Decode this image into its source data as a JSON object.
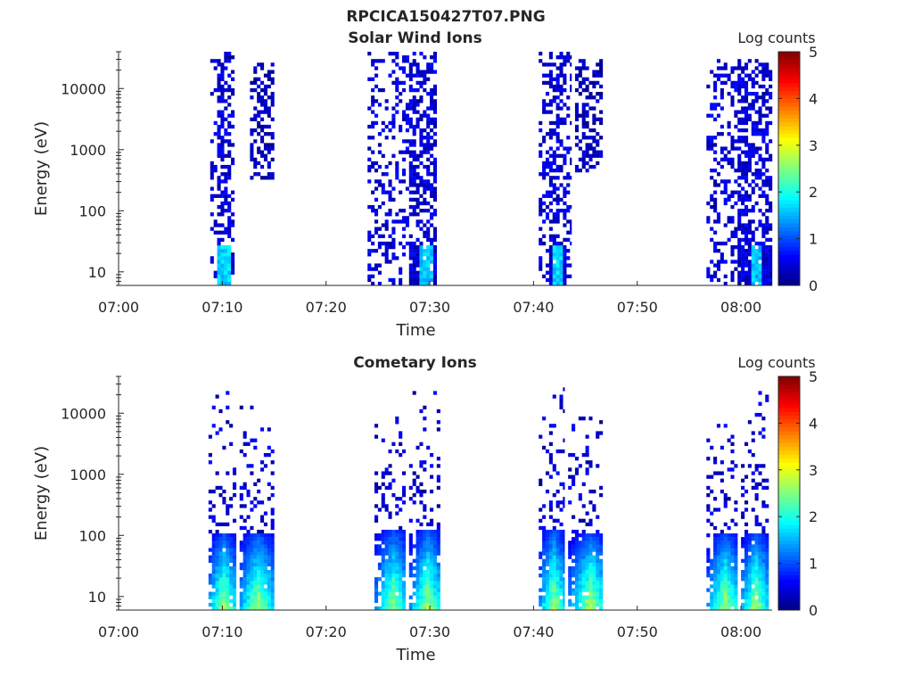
{
  "figure_title": "RPCICA150427T07.PNG",
  "chart_data": [
    {
      "type": "heatmap",
      "title": "Solar Wind Ions",
      "xlabel": "Time",
      "ylabel": "Energy (eV)",
      "x_ticks": [
        "07:00",
        "07:10",
        "07:20",
        "07:30",
        "07:40",
        "07:50",
        "08:00"
      ],
      "x_range": [
        "07:00",
        "08:03"
      ],
      "y_scale": "log",
      "y_ticks": [
        "10",
        "100",
        "1000",
        "10000"
      ],
      "y_range": [
        6,
        40000
      ],
      "colorbar": {
        "label": "Log counts",
        "ticks": [
          "0",
          "1",
          "2",
          "3",
          "4",
          "5"
        ],
        "range": [
          0,
          5
        ],
        "colormap": "jet"
      },
      "bursts": [
        {
          "start": "07:08:50",
          "end": "07:11:10",
          "peak": "07:10:00",
          "e_low": 6,
          "e_high": 40000,
          "peak_log_counts": 1.9,
          "low_energy_core": true
        },
        {
          "start": "07:12:40",
          "end": "07:15:00",
          "peak": "07:13:40",
          "e_low": 300,
          "e_high": 25000,
          "peak_log_counts": 0.5,
          "low_energy_core": false
        },
        {
          "start": "07:24:00",
          "end": "07:30:40",
          "peak": "07:29:30",
          "e_low": 6,
          "e_high": 40000,
          "peak_log_counts": 1.8,
          "low_energy_core": true
        },
        {
          "start": "07:40:30",
          "end": "07:43:40",
          "peak": "07:42:10",
          "e_low": 6,
          "e_high": 35000,
          "peak_log_counts": 1.9,
          "low_energy_core": true
        },
        {
          "start": "07:44:00",
          "end": "07:46:40",
          "peak": "07:45:20",
          "e_low": 400,
          "e_high": 30000,
          "peak_log_counts": 0.6,
          "low_energy_core": false
        },
        {
          "start": "07:56:40",
          "end": "08:03:00",
          "peak": "08:01:20",
          "e_low": 6,
          "e_high": 30000,
          "peak_log_counts": 1.8,
          "low_energy_core": true
        }
      ]
    },
    {
      "type": "heatmap",
      "title": "Cometary Ions",
      "xlabel": "Time",
      "ylabel": "Energy (eV)",
      "x_ticks": [
        "07:00",
        "07:10",
        "07:20",
        "07:30",
        "07:40",
        "07:50",
        "08:00"
      ],
      "x_range": [
        "07:00",
        "08:03"
      ],
      "y_scale": "log",
      "y_ticks": [
        "10",
        "100",
        "1000",
        "10000"
      ],
      "y_range": [
        6,
        40000
      ],
      "colorbar": {
        "label": "Log counts",
        "ticks": [
          "0",
          "1",
          "2",
          "3",
          "4",
          "5"
        ],
        "range": [
          0,
          5
        ],
        "colormap": "jet"
      },
      "bursts": [
        {
          "start": "07:08:40",
          "end": "07:11:20",
          "peak": "07:10:00",
          "e_low": 6,
          "e_high": 25000,
          "peak_log_counts": 2.9,
          "core_top_eV": 100
        },
        {
          "start": "07:11:40",
          "end": "07:15:00",
          "peak": "07:13:20",
          "e_low": 6,
          "e_high": 12000,
          "peak_log_counts": 2.9,
          "core_top_eV": 100
        },
        {
          "start": "07:24:40",
          "end": "07:27:40",
          "peak": "07:26:20",
          "e_low": 6,
          "e_high": 8000,
          "peak_log_counts": 2.8,
          "core_top_eV": 120
        },
        {
          "start": "07:28:00",
          "end": "07:31:00",
          "peak": "07:29:40",
          "e_low": 6,
          "e_high": 25000,
          "peak_log_counts": 2.9,
          "core_top_eV": 120
        },
        {
          "start": "07:40:30",
          "end": "07:43:00",
          "peak": "07:41:50",
          "e_low": 6,
          "e_high": 30000,
          "peak_log_counts": 2.9,
          "core_top_eV": 120
        },
        {
          "start": "07:43:20",
          "end": "07:46:40",
          "peak": "07:45:20",
          "e_low": 6,
          "e_high": 8000,
          "peak_log_counts": 3.0,
          "core_top_eV": 100
        },
        {
          "start": "07:56:40",
          "end": "07:59:40",
          "peak": "07:58:20",
          "e_low": 6,
          "e_high": 8000,
          "peak_log_counts": 2.9,
          "core_top_eV": 100
        },
        {
          "start": "08:00:00",
          "end": "08:02:40",
          "peak": "08:01:20",
          "e_low": 6,
          "e_high": 35000,
          "peak_log_counts": 2.9,
          "core_top_eV": 100
        }
      ]
    }
  ]
}
